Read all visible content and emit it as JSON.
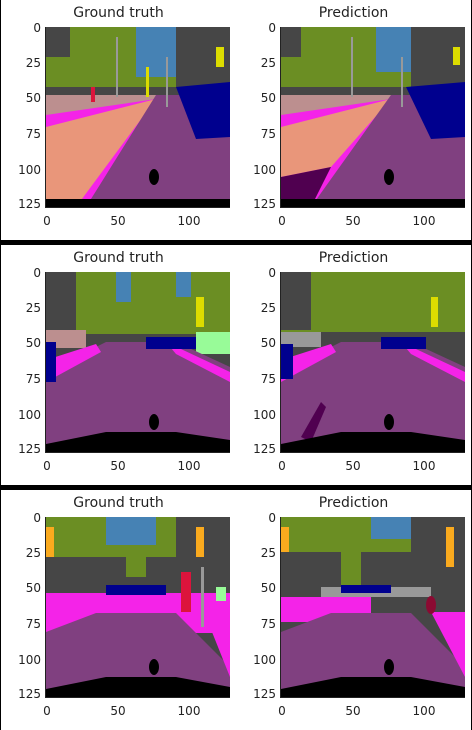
{
  "rows": [
    {
      "panels": [
        {
          "title": "Ground truth"
        },
        {
          "title": "Prediction"
        }
      ]
    },
    {
      "panels": [
        {
          "title": "Ground truth"
        },
        {
          "title": "Prediction"
        }
      ]
    },
    {
      "panels": [
        {
          "title": "Ground truth"
        },
        {
          "title": "Prediction"
        }
      ]
    }
  ],
  "axes": {
    "y_ticks": [
      "0",
      "25",
      "50",
      "75",
      "100",
      "125"
    ],
    "x_ticks": [
      "0",
      "50",
      "100"
    ]
  },
  "colors": {
    "road": "#804080",
    "sidewalk": "#f423e8",
    "building": "#464646",
    "vegetation": "#6b8e23",
    "sky": "#4682b4",
    "car": "#00008e",
    "pole": "#999999",
    "sign": "#dcdc00",
    "traffic_light": "#faaa1e",
    "person": "#dc143c",
    "terrain": "#98fb98",
    "wall": "#bc8f8f",
    "fence": "#be9999",
    "parking": "#fa96a0",
    "ego_vehicle": "#000000"
  }
}
